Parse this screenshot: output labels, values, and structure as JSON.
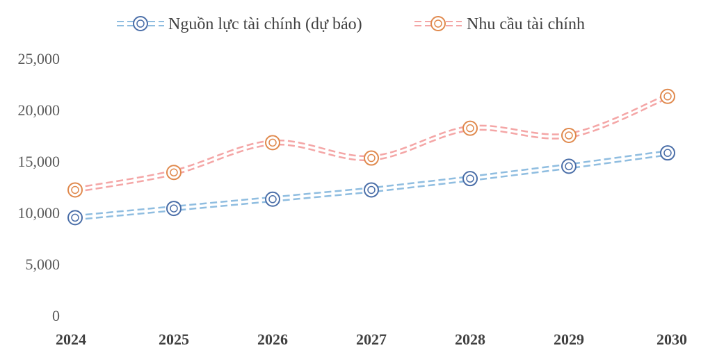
{
  "chart_data": {
    "type": "line",
    "categories": [
      "2024",
      "2025",
      "2026",
      "2027",
      "2028",
      "2029",
      "2030"
    ],
    "y_ticks": [
      "0",
      "5,000",
      "10,000",
      "15,000",
      "20,000",
      "25,000"
    ],
    "ylim": [
      0,
      25000
    ],
    "grid": false,
    "legend_position": "top",
    "series": [
      {
        "name": "Nguồn lực tài chính (dự báo)",
        "values": [
          9500,
          10400,
          11300,
          12200,
          13300,
          14500,
          15800
        ],
        "line_color": "#8fbde0",
        "marker_color": "#4a6ea8",
        "smooth": false
      },
      {
        "name": "Nhu cầu tài chính",
        "values": [
          12200,
          13900,
          16800,
          15300,
          18200,
          17500,
          21300
        ],
        "line_color": "#f4a6a6",
        "marker_color": "#e0894d",
        "smooth": true
      }
    ]
  }
}
